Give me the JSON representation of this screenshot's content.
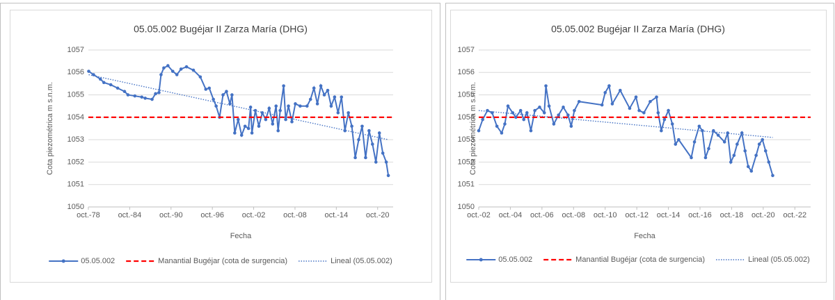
{
  "chart_data": [
    {
      "type": "line",
      "title": "05.05.002 Bugéjar II Zarza María (DHG)",
      "x_label": "Fecha",
      "y_label": "Cota piezométrica m s.n.m.",
      "xlim": [
        1978.75,
        2023
      ],
      "ylim": [
        1050,
        1057
      ],
      "yticks": [
        1050,
        1051,
        1052,
        1053,
        1054,
        1055,
        1056,
        1057
      ],
      "xticks": [
        {
          "value": 1978.75,
          "label": "oct.-78"
        },
        {
          "value": 1984.75,
          "label": "oct.-84"
        },
        {
          "value": 1990.75,
          "label": "oct.-90"
        },
        {
          "value": 1996.75,
          "label": "oct.-96"
        },
        {
          "value": 2002.75,
          "label": "oct.-02"
        },
        {
          "value": 2008.75,
          "label": "oct.-08"
        },
        {
          "value": 2014.75,
          "label": "oct.-14"
        },
        {
          "value": 2020.75,
          "label": "oct.-20"
        }
      ],
      "grid": true,
      "legend": "bottom",
      "series": [
        {
          "name": "05.05.002",
          "color": "#4472c4",
          "style": "solid",
          "marker": "circle",
          "x": [
            1978.8,
            1979.5,
            1980.5,
            1981,
            1982,
            1983,
            1984,
            1984.5,
            1985.5,
            1986.5,
            1987,
            1988,
            1988.5,
            1989,
            1989.3,
            1989.7,
            1990.3,
            1991,
            1991.6,
            1992.2,
            1993,
            1994,
            1995,
            1995.8,
            1996.3,
            1996.9,
            1997.3,
            1997.8,
            1998.3,
            1998.8,
            1999.3,
            1999.6,
            2000,
            2000.5,
            2001,
            2001.5,
            2002,
            2002.3,
            2002.5,
            2003,
            2003.5,
            2004,
            2004.5,
            2005,
            2005.5,
            2006,
            2006.3,
            2006.6,
            2007.1,
            2007.4,
            2007.8,
            2008.3,
            2008.8,
            2009.5,
            2010.5,
            2011,
            2011.5,
            2012,
            2012.5,
            2013,
            2013.5,
            2014,
            2014.5,
            2015,
            2015.5,
            2016,
            2016.5,
            2017,
            2017.5,
            2018,
            2018.5,
            2019,
            2019.5,
            2020,
            2020.5,
            2021,
            2021.5,
            2022,
            2022.3
          ],
          "values": [
            1056.05,
            1055.9,
            1055.7,
            1055.55,
            1055.45,
            1055.3,
            1055.15,
            1055.0,
            1054.95,
            1054.9,
            1054.85,
            1054.8,
            1055.05,
            1055.1,
            1055.9,
            1056.2,
            1056.3,
            1056.05,
            1055.9,
            1056.15,
            1056.25,
            1056.1,
            1055.8,
            1055.25,
            1055.3,
            1054.8,
            1054.5,
            1054.0,
            1055.0,
            1055.15,
            1054.6,
            1055.0,
            1053.3,
            1053.9,
            1053.2,
            1053.6,
            1053.5,
            1054.45,
            1053.3,
            1054.3,
            1053.6,
            1054.2,
            1053.9,
            1054.4,
            1053.7,
            1054.5,
            1053.4,
            1054.3,
            1055.4,
            1053.9,
            1054.5,
            1053.8,
            1054.6,
            1054.5,
            1054.5,
            1054.8,
            1055.3,
            1054.6,
            1055.4,
            1055.0,
            1055.2,
            1054.5,
            1054.9,
            1054.2,
            1054.9,
            1053.4,
            1054.2,
            1053.6,
            1052.2,
            1053.0,
            1053.6,
            1052.2,
            1053.4,
            1052.8,
            1052.0,
            1053.3,
            1052.4,
            1052.0,
            1051.4
          ]
        },
        {
          "name": "Manantial Bugéjar (cota de surgencia)",
          "color": "#ff0000",
          "style": "dashed",
          "x": [
            1978.75,
            2023
          ],
          "values": [
            1054,
            1054
          ]
        },
        {
          "name": "Lineal (05.05.002)",
          "color": "#4472c4",
          "style": "dotted",
          "x": [
            1978.8,
            2022.3
          ],
          "values": [
            1055.9,
            1053.0
          ]
        }
      ]
    },
    {
      "type": "line",
      "title": "05.05.002 Bugéjar II Zarza María (DHG)",
      "x_label": "Fecha",
      "y_label": "Cota piezométrica m s.n.m.",
      "xlim": [
        2002.75,
        2023.75
      ],
      "ylim": [
        1050,
        1057
      ],
      "yticks": [
        1050,
        1051,
        1052,
        1053,
        1054,
        1055,
        1056,
        1057
      ],
      "xticks": [
        {
          "value": 2002.75,
          "label": "oct.-02"
        },
        {
          "value": 2004.75,
          "label": "oct.-04"
        },
        {
          "value": 2006.75,
          "label": "oct.-06"
        },
        {
          "value": 2008.75,
          "label": "oct.-08"
        },
        {
          "value": 2010.75,
          "label": "oct.-10"
        },
        {
          "value": 2012.75,
          "label": "oct.-12"
        },
        {
          "value": 2014.75,
          "label": "oct.-14"
        },
        {
          "value": 2016.75,
          "label": "oct.-16"
        },
        {
          "value": 2018.75,
          "label": "oct.-18"
        },
        {
          "value": 2020.75,
          "label": "oct.-20"
        },
        {
          "value": 2022.75,
          "label": "oct.-22"
        }
      ],
      "grid": true,
      "legend": "bottom",
      "series": [
        {
          "name": "05.05.002",
          "color": "#4472c4",
          "style": "solid",
          "marker": "circle",
          "x": [
            2002.75,
            2003.0,
            2003.3,
            2003.6,
            2003.9,
            2004.2,
            2004.4,
            2004.6,
            2004.9,
            2005.1,
            2005.4,
            2005.6,
            2005.8,
            2006.05,
            2006.3,
            2006.6,
            2006.9,
            2007.0,
            2007.2,
            2007.5,
            2007.8,
            2008.1,
            2008.4,
            2008.6,
            2008.8,
            2009.1,
            2010.55,
            2010.75,
            2011.0,
            2011.2,
            2011.7,
            2012.3,
            2012.7,
            2012.9,
            2013.2,
            2013.6,
            2014.0,
            2014.1,
            2014.3,
            2014.5,
            2014.75,
            2015.0,
            2015.2,
            2015.4,
            2016.2,
            2016.4,
            2016.7,
            2016.9,
            2017.1,
            2017.3,
            2017.6,
            2017.9,
            2018.3,
            2018.5,
            2018.7,
            2018.9,
            2019.1,
            2019.4,
            2019.6,
            2019.8,
            2020.0,
            2020.3,
            2020.5,
            2020.7,
            2020.9,
            2021.1,
            2021.35
          ],
          "values": [
            1053.4,
            1053.9,
            1054.3,
            1054.2,
            1053.6,
            1053.3,
            1053.7,
            1054.5,
            1054.2,
            1054.0,
            1054.3,
            1053.9,
            1054.2,
            1053.4,
            1054.3,
            1054.45,
            1054.2,
            1055.4,
            1054.5,
            1053.7,
            1054.1,
            1054.45,
            1054.1,
            1053.6,
            1054.3,
            1054.7,
            1054.55,
            1055.1,
            1055.4,
            1054.6,
            1055.2,
            1054.4,
            1054.9,
            1054.3,
            1054.2,
            1054.7,
            1054.9,
            1054.2,
            1053.4,
            1053.9,
            1054.3,
            1053.7,
            1052.8,
            1053.0,
            1052.2,
            1052.9,
            1053.6,
            1053.4,
            1052.2,
            1052.6,
            1053.4,
            1053.2,
            1052.9,
            1053.3,
            1052.0,
            1052.3,
            1052.8,
            1053.3,
            1052.5,
            1051.8,
            1051.6,
            1052.3,
            1052.8,
            1053.0,
            1052.5,
            1052.0,
            1051.4
          ]
        },
        {
          "name": "Manantial Bugéjar (cota de surgencia)",
          "color": "#ff0000",
          "style": "dashed",
          "x": [
            2002.75,
            2023.75
          ],
          "values": [
            1054,
            1054
          ]
        },
        {
          "name": "Lineal (05.05.002)",
          "color": "#4472c4",
          "style": "dotted",
          "x": [
            2002.75,
            2021.35
          ],
          "values": [
            1054.3,
            1053.1
          ]
        }
      ]
    }
  ]
}
